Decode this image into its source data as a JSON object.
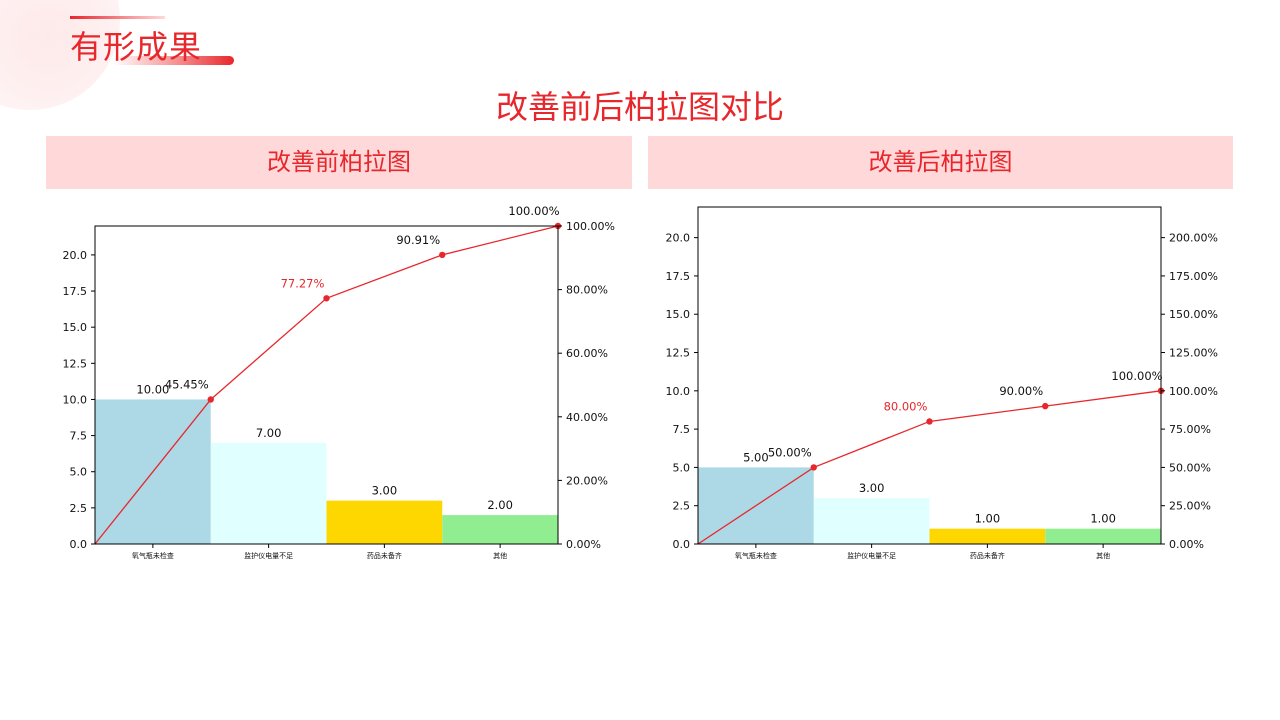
{
  "page": {
    "section_title": "有形成果",
    "main_title": "改善前后柏拉图对比"
  },
  "panels": [
    {
      "header": "改善前柏拉图"
    },
    {
      "header": "改善后柏拉图"
    }
  ],
  "colors": {
    "accent": "#e8272c",
    "header_bg": "#ffd9da",
    "bars": [
      "#add8e6",
      "#e0ffff",
      "#ffd700",
      "#90ee90"
    ],
    "line": "#e8272c"
  },
  "chart_data": [
    {
      "type": "bar",
      "title": "改善前柏拉图",
      "categories": [
        "氧气瓶未检查",
        "监护仪电量不足",
        "药品未备齐",
        "其他"
      ],
      "values": [
        10,
        7,
        3,
        2
      ],
      "value_labels": [
        "10.00",
        "7.00",
        "3.00",
        "2.00"
      ],
      "cumulative_percent": [
        45.45,
        77.27,
        90.91,
        100.0
      ],
      "cumulative_labels": [
        "45.45%",
        "77.27%",
        "90.91%",
        "100.00%"
      ],
      "highlight_label_index": 1,
      "ylim": [
        0,
        22
      ],
      "y_ticks": [
        0,
        2.5,
        5,
        7.5,
        10,
        12.5,
        15,
        17.5,
        20
      ],
      "y_tick_labels": [
        "0.0",
        "2.5",
        "5.0",
        "7.5",
        "10.0",
        "12.5",
        "15.0",
        "17.5",
        "20.0"
      ],
      "y2lim": [
        0,
        100
      ],
      "y2_ticks": [
        0,
        20,
        40,
        60,
        80,
        100
      ],
      "y2_tick_labels": [
        "0.00%",
        "20.00%",
        "40.00%",
        "60.00%",
        "80.00%",
        "100.00%"
      ],
      "grid": false
    },
    {
      "type": "bar",
      "title": "改善后柏拉图",
      "categories": [
        "氧气瓶未检查",
        "监护仪电量不足",
        "药品未备齐",
        "其他"
      ],
      "values": [
        5,
        3,
        1,
        1
      ],
      "value_labels": [
        "5.00",
        "3.00",
        "1.00",
        "1.00"
      ],
      "cumulative_percent": [
        50.0,
        80.0,
        90.0,
        100.0
      ],
      "cumulative_labels": [
        "50.00%",
        "80.00%",
        "90.00%",
        "100.00%"
      ],
      "highlight_label_index": 1,
      "ylim": [
        0,
        22
      ],
      "y_ticks": [
        0,
        2.5,
        5,
        7.5,
        10,
        12.5,
        15,
        17.5,
        20
      ],
      "y_tick_labels": [
        "0.0",
        "2.5",
        "5.0",
        "7.5",
        "10.0",
        "12.5",
        "15.0",
        "17.5",
        "20.0"
      ],
      "y2lim": [
        0,
        220
      ],
      "y2_ticks": [
        0,
        25,
        50,
        75,
        100,
        125,
        150,
        175,
        200
      ],
      "y2_tick_labels": [
        "0.00%",
        "25.00%",
        "50.00%",
        "75.00%",
        "100.00%",
        "125.00%",
        "150.00%",
        "175.00%",
        "200.00%"
      ],
      "grid": false
    }
  ]
}
